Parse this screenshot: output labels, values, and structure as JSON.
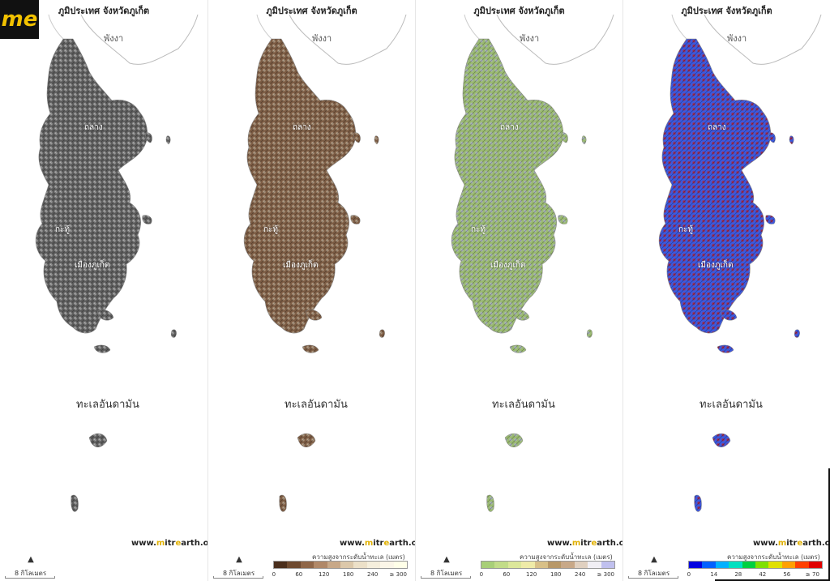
{
  "panels": [
    {
      "title": "ภูมิประเทศ จังหวัดภูเก็ต",
      "style": "hillshade",
      "labels": {
        "province": "พังงา",
        "district_north": "ถลาง",
        "district_mid": "กะทู้",
        "district_south": "เมืองภูเก็ต",
        "sea": "ทะเลอันดามัน"
      },
      "website": {
        "prefix": "www.",
        "m": "m",
        "mid": "itr",
        "e": "e",
        "suffix": "arth.org"
      },
      "scale": "8 กิโลเมตร",
      "colors": {
        "land": "#5a5a5a",
        "highlight": "#d8d8d8"
      }
    },
    {
      "title": "ภูมิประเทศ จังหวัดภูเก็ต",
      "style": "sepia",
      "labels": {
        "province": "พังงา",
        "district_north": "ถลาง",
        "district_mid": "กะทู้",
        "district_south": "เมืองภูเก็ต",
        "sea": "ทะเลอันดามัน"
      },
      "website": {
        "prefix": "www.",
        "m": "m",
        "mid": "itr",
        "e": "e",
        "suffix": "arth.org"
      },
      "scale": "8 กิโลเมตร",
      "legend": {
        "title": "ความสูงจากระดับน้ำทะเล (เมตร)",
        "colors": [
          "#4a2e1c",
          "#6e4a30",
          "#8f6648",
          "#b08868",
          "#c8a888",
          "#dcc8aa",
          "#ece0c8",
          "#f5eedc",
          "#fbf6e8",
          "#ffffe8"
        ],
        "ticks": [
          "0",
          "60",
          "120",
          "180",
          "240",
          "≥ 300"
        ]
      },
      "colors": {
        "land": "#7a5a42",
        "highlight": "#d8c8b0"
      }
    },
    {
      "title": "ภูมิประเทศ จังหวัดภูเก็ต",
      "style": "green",
      "labels": {
        "province": "พังงา",
        "district_north": "ถลาง",
        "district_mid": "กะทู้",
        "district_south": "เมืองภูเก็ต",
        "sea": "ทะเลอันดามัน"
      },
      "website": {
        "prefix": "www.",
        "m": "m",
        "mid": "itr",
        "e": "e",
        "suffix": "arth.org"
      },
      "scale": "8 กิโลเมตร",
      "legend": {
        "title": "ความสูงจากระดับน้ำทะเล (เมตร)",
        "colors": [
          "#a8cf78",
          "#c2dc88",
          "#dce79a",
          "#efeba8",
          "#d8c088",
          "#b89868",
          "#c8a888",
          "#e0d0c0",
          "#f0eef4",
          "#c0c0ee"
        ],
        "ticks": [
          "0",
          "60",
          "120",
          "180",
          "240",
          "≥ 300"
        ]
      },
      "colors": {
        "land": "#9aba70",
        "highlight": "#b8b8e8"
      }
    },
    {
      "title": "ภูมิประเทศ จังหวัดภูเก็ต",
      "style": "rainbow",
      "labels": {
        "province": "พังงา",
        "district_north": "ถลาง",
        "district_mid": "กะทู้",
        "district_south": "เมืองภูเก็ต",
        "sea": "ทะเลอันดามัน"
      },
      "website": {
        "prefix": "www.",
        "m": "m",
        "mid": "itr",
        "e": "e",
        "suffix": "arth.org"
      },
      "scale": "8 กิโลเมตร",
      "legend": {
        "title": "ความสูงจากระดับน้ำทะเล (เมตร)",
        "colors": [
          "#0000e0",
          "#0060ff",
          "#00b0ff",
          "#00e0c0",
          "#00d040",
          "#80e000",
          "#e0e000",
          "#ffa000",
          "#ff4000",
          "#e00000"
        ],
        "ticks": [
          "0",
          "14",
          "28",
          "42",
          "56",
          "≥ 70"
        ]
      },
      "colors": {
        "land": "#3a5ae0",
        "highlight": "#cc1a1a"
      }
    }
  ],
  "logo": {
    "text": "me"
  }
}
